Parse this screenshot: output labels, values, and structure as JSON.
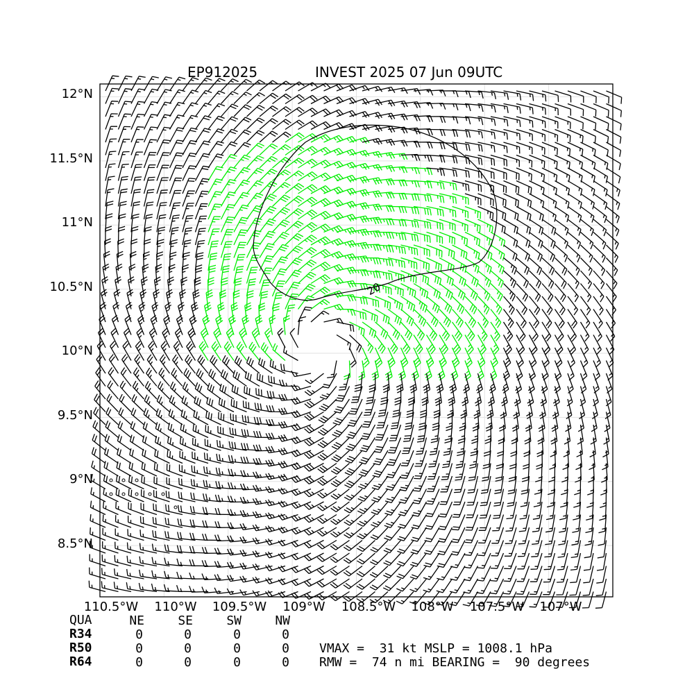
{
  "chart_data": {
    "type": "wind_barb_map",
    "storm_id": "EP912025",
    "title": "INVEST 2025 07 Jun 09UTC",
    "lon_ticks": [
      "110.5°W",
      "110°W",
      "109.5°W",
      "109°W",
      "108.5°W",
      "108°W",
      "107.5°W",
      "107°W"
    ],
    "lon_values": [
      -110.5,
      -110.0,
      -109.5,
      -109.0,
      -108.5,
      -108.0,
      -107.5,
      -107.0
    ],
    "lat_ticks": [
      "12°N",
      "11.5°N",
      "11°N",
      "10.5°N",
      "10°N",
      "9.5°N",
      "9°N",
      "8.5°N"
    ],
    "lat_values": [
      12.0,
      11.5,
      11.0,
      10.5,
      10.0,
      9.5,
      9.0,
      8.5
    ],
    "xlim": [
      -110.5,
      -106.5
    ],
    "ylim": [
      8.1,
      12.1
    ],
    "grid": true,
    "center": {
      "lon": -108.8,
      "lat": 10.05
    },
    "contour_label": "20",
    "highlight_color": "#00ee00",
    "barb_color": "#000000"
  },
  "table": {
    "header": [
      "QUA",
      "NE",
      "SE",
      "SW",
      "NW"
    ],
    "rows": [
      {
        "label": "R34",
        "values": [
          "0",
          "0",
          "0",
          "0"
        ]
      },
      {
        "label": "R50",
        "values": [
          "0",
          "0",
          "0",
          "0"
        ]
      },
      {
        "label": "R64",
        "values": [
          "0",
          "0",
          "0",
          "0"
        ]
      }
    ]
  },
  "stats": {
    "line1": "VMAX =  31 kt MSLP = 1008.1 hPa",
    "line2": "RMW =  74 n mi BEARING =  90 degrees"
  }
}
